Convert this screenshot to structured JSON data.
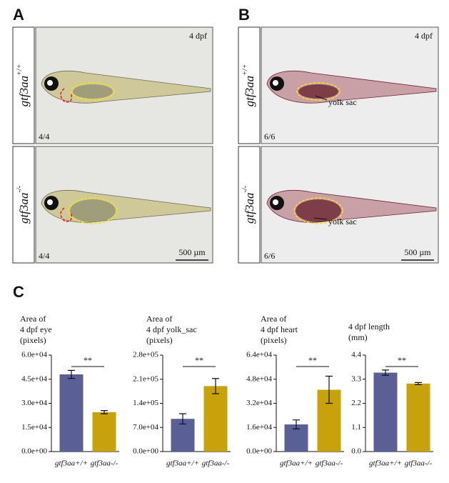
{
  "panels": [
    {
      "label": "A",
      "rows": [
        {
          "genotype": {
            "gene": "gtf3aa",
            "allele": "+/+"
          },
          "stage": "4 dpf",
          "count": "4/4"
        },
        {
          "genotype": {
            "gene": "gtf3aa",
            "allele": "-/-"
          },
          "count": "4/4",
          "scale_bar": "500 µm"
        }
      ]
    },
    {
      "label": "B",
      "rows": [
        {
          "genotype": {
            "gene": "gtf3aa",
            "allele": "+/+"
          },
          "stage": "4 dpf",
          "count": "6/6",
          "annotation": "yolk sac"
        },
        {
          "genotype": {
            "gene": "gtf3aa",
            "allele": "-/-"
          },
          "count": "6/6",
          "scale_bar": "500 µm",
          "annotation": "yolk sac"
        }
      ]
    }
  ],
  "chart_panel_label": "C",
  "chart_data": [
    {
      "type": "bar",
      "title": [
        "Area of",
        "4 dpf eye",
        "(pixels)"
      ],
      "categories": [
        "gtf3aa+/+",
        "gtf3aa-/-"
      ],
      "values": [
        48000,
        24500
      ],
      "errors": [
        2500,
        1000
      ],
      "colors": [
        "#5a5f96",
        "#c8a20a"
      ],
      "annotation": "**",
      "ylim": [
        0,
        60000
      ],
      "yticks": [
        {
          "value": 0,
          "label": "0.0e+00"
        },
        {
          "value": 15000,
          "label": "1.5e+04"
        },
        {
          "value": 30000,
          "label": "3.0e+04"
        },
        {
          "value": 45000,
          "label": "4.5e+04"
        },
        {
          "value": 60000,
          "label": "6.0e+04"
        }
      ]
    },
    {
      "type": "bar",
      "title": [
        "Area of",
        "4 dpf yolk_sac",
        "(pixels)"
      ],
      "categories": [
        "gtf3aa+/+",
        "gtf3aa-/-"
      ],
      "values": [
        95000,
        190000
      ],
      "errors": [
        15000,
        22000
      ],
      "colors": [
        "#5a5f96",
        "#c8a20a"
      ],
      "annotation": "**",
      "ylim": [
        0,
        280000
      ],
      "yticks": [
        {
          "value": 0,
          "label": "0.0e+00"
        },
        {
          "value": 70000,
          "label": "7.0e+04"
        },
        {
          "value": 140000,
          "label": "1.4e+05"
        },
        {
          "value": 210000,
          "label": "2.1e+05"
        },
        {
          "value": 280000,
          "label": "2.8e+05"
        }
      ]
    },
    {
      "type": "bar",
      "title": [
        "Area of",
        "4 dpf heart",
        "(pixels)"
      ],
      "categories": [
        "gtf3aa+/+",
        "gtf3aa-/-"
      ],
      "values": [
        18000,
        41000
      ],
      "errors": [
        3000,
        9000
      ],
      "colors": [
        "#5a5f96",
        "#c8a20a"
      ],
      "annotation": "**",
      "ylim": [
        0,
        64000
      ],
      "yticks": [
        {
          "value": 0,
          "label": "0.0e+00"
        },
        {
          "value": 16000,
          "label": "1.6e+04"
        },
        {
          "value": 32000,
          "label": "3.2e+04"
        },
        {
          "value": 48000,
          "label": "4.8e+04"
        },
        {
          "value": 64000,
          "label": "6.4e+04"
        }
      ]
    },
    {
      "type": "bar",
      "title": [
        "4 dpf length",
        "(mm)"
      ],
      "categories": [
        "gtf3aa+/+",
        "gtf3aa-/-"
      ],
      "values": [
        3.6,
        3.1
      ],
      "errors": [
        0.12,
        0.05
      ],
      "colors": [
        "#5a5f96",
        "#c8a20a"
      ],
      "annotation": "**",
      "ylim": [
        0,
        4.4
      ],
      "yticks": [
        {
          "value": 0,
          "label": "0.0"
        },
        1.1,
        2.2,
        3.3,
        4.4
      ]
    }
  ]
}
